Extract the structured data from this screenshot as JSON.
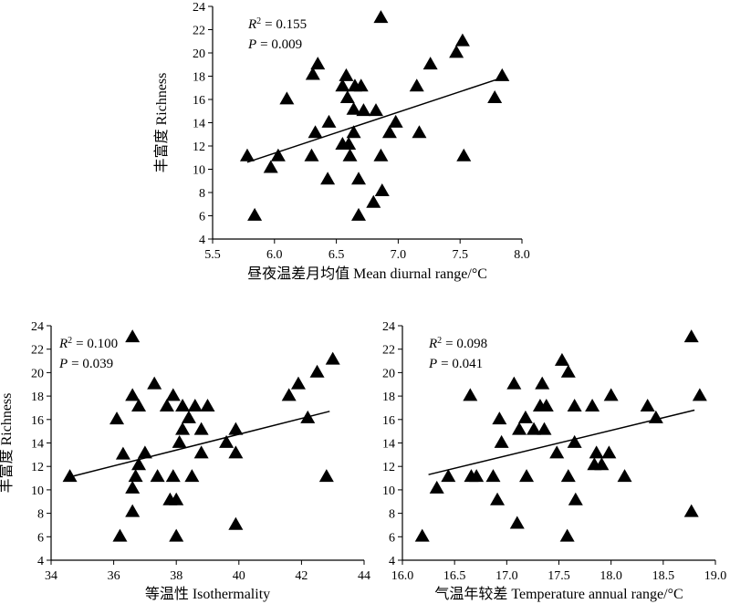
{
  "chart_data": [
    {
      "type": "scatter",
      "xlabel": "昼夜温差月均值 Mean diurnal range/°C",
      "ylabel": "丰富度 Richness",
      "xlim": [
        5.5,
        8.0
      ],
      "ylim": [
        4,
        24
      ],
      "xticks": [
        "5.5",
        "6.0",
        "6.5",
        "7.0",
        "7.5",
        "8.0"
      ],
      "yticks": [
        "4",
        "6",
        "8",
        "10",
        "12",
        "14",
        "16",
        "18",
        "20",
        "22",
        "24"
      ],
      "annotation": {
        "r2_label": "R",
        "r2_value": "= 0.155",
        "p_label": "P",
        "p_value": "= 0.009"
      },
      "marker": "triangle",
      "grid": false,
      "fit": {
        "x0": 5.78,
        "y0": 10.6,
        "x1": 7.82,
        "y1": 17.8
      },
      "points": [
        [
          5.78,
          11.1
        ],
        [
          5.84,
          6.0
        ],
        [
          5.97,
          10.1
        ],
        [
          6.03,
          11.1
        ],
        [
          6.1,
          16.0
        ],
        [
          6.3,
          11.1
        ],
        [
          6.31,
          18.1
        ],
        [
          6.33,
          13.1
        ],
        [
          6.35,
          19.0
        ],
        [
          6.43,
          9.1
        ],
        [
          6.44,
          14.0
        ],
        [
          6.55,
          12.1
        ],
        [
          6.55,
          17.1
        ],
        [
          6.58,
          18.0
        ],
        [
          6.59,
          16.1
        ],
        [
          6.6,
          12.1
        ],
        [
          6.61,
          11.1
        ],
        [
          6.64,
          15.1
        ],
        [
          6.64,
          13.1
        ],
        [
          6.65,
          17.1
        ],
        [
          6.68,
          9.1
        ],
        [
          6.68,
          6.0
        ],
        [
          6.7,
          17.1
        ],
        [
          6.72,
          15.0
        ],
        [
          6.8,
          7.1
        ],
        [
          6.82,
          15.0
        ],
        [
          6.86,
          11.1
        ],
        [
          6.87,
          8.1
        ],
        [
          6.86,
          23.0
        ],
        [
          6.93,
          13.1
        ],
        [
          6.98,
          14.0
        ],
        [
          7.15,
          17.1
        ],
        [
          7.17,
          13.1
        ],
        [
          7.26,
          19.0
        ],
        [
          7.47,
          20.0
        ],
        [
          7.52,
          21.0
        ],
        [
          7.53,
          11.1
        ],
        [
          7.78,
          16.1
        ],
        [
          7.84,
          18.0
        ]
      ]
    },
    {
      "type": "scatter",
      "xlabel": "等温性 Isothermality",
      "ylabel": "丰富度 Richness",
      "xlim": [
        34,
        44
      ],
      "ylim": [
        4,
        24
      ],
      "xticks": [
        "34",
        "36",
        "38",
        "40",
        "42",
        "44"
      ],
      "yticks": [
        "4",
        "6",
        "8",
        "10",
        "12",
        "14",
        "16",
        "18",
        "20",
        "22",
        "24"
      ],
      "annotation": {
        "r2_label": "R",
        "r2_value": "= 0.100",
        "p_label": "P",
        "p_value": "= 0.039"
      },
      "marker": "triangle",
      "grid": false,
      "fit": {
        "x0": 34.6,
        "y0": 11.1,
        "x1": 42.9,
        "y1": 16.7
      },
      "points": [
        [
          34.6,
          11.1
        ],
        [
          36.1,
          16.0
        ],
        [
          36.2,
          6.0
        ],
        [
          36.3,
          13.0
        ],
        [
          36.6,
          23.0
        ],
        [
          36.6,
          18.0
        ],
        [
          36.6,
          10.1
        ],
        [
          36.6,
          8.1
        ],
        [
          36.7,
          11.1
        ],
        [
          36.8,
          17.1
        ],
        [
          36.8,
          12.1
        ],
        [
          37.0,
          13.1
        ],
        [
          37.3,
          19.0
        ],
        [
          37.4,
          11.1
        ],
        [
          37.7,
          17.1
        ],
        [
          37.8,
          9.1
        ],
        [
          37.9,
          18.0
        ],
        [
          37.9,
          11.1
        ],
        [
          38.0,
          9.1
        ],
        [
          38.0,
          6.0
        ],
        [
          38.1,
          14.0
        ],
        [
          38.2,
          17.1
        ],
        [
          38.2,
          15.1
        ],
        [
          38.4,
          16.1
        ],
        [
          38.5,
          11.1
        ],
        [
          38.6,
          17.1
        ],
        [
          38.8,
          13.1
        ],
        [
          38.8,
          15.1
        ],
        [
          39.0,
          17.1
        ],
        [
          39.6,
          14.0
        ],
        [
          39.9,
          15.1
        ],
        [
          39.9,
          13.1
        ],
        [
          39.9,
          7.0
        ],
        [
          41.6,
          18.0
        ],
        [
          41.9,
          19.0
        ],
        [
          42.2,
          16.1
        ],
        [
          42.5,
          20.0
        ],
        [
          42.8,
          11.1
        ],
        [
          43.0,
          21.1
        ]
      ]
    },
    {
      "type": "scatter",
      "xlabel": "气温年较差 Temperature annual range/°C",
      "ylabel": "",
      "xlim": [
        16.0,
        19.0
      ],
      "ylim": [
        4,
        24
      ],
      "xticks": [
        "16.0",
        "16.5",
        "17.0",
        "17.5",
        "18.0",
        "18.5",
        "19.0"
      ],
      "yticks": [
        "4",
        "6",
        "8",
        "10",
        "12",
        "14",
        "16",
        "18",
        "20",
        "22",
        "24"
      ],
      "annotation": {
        "r2_label": "R",
        "r2_value": "= 0.098",
        "p_label": "P",
        "p_value": "= 0.041"
      },
      "marker": "triangle",
      "grid": false,
      "fit": {
        "x0": 16.25,
        "y0": 11.3,
        "x1": 18.8,
        "y1": 16.8
      },
      "points": [
        [
          16.19,
          6.0
        ],
        [
          16.33,
          10.1
        ],
        [
          16.44,
          11.1
        ],
        [
          16.65,
          18.0
        ],
        [
          16.66,
          11.1
        ],
        [
          16.71,
          11.1
        ],
        [
          16.87,
          11.1
        ],
        [
          16.91,
          9.1
        ],
        [
          16.93,
          16.0
        ],
        [
          16.95,
          14.0
        ],
        [
          17.07,
          19.0
        ],
        [
          17.1,
          7.1
        ],
        [
          17.12,
          15.1
        ],
        [
          17.18,
          16.1
        ],
        [
          17.19,
          11.1
        ],
        [
          17.26,
          15.1
        ],
        [
          17.32,
          17.1
        ],
        [
          17.34,
          19.0
        ],
        [
          17.36,
          15.1
        ],
        [
          17.38,
          17.1
        ],
        [
          17.48,
          13.1
        ],
        [
          17.53,
          21.0
        ],
        [
          17.58,
          6.0
        ],
        [
          17.59,
          20.0
        ],
        [
          17.59,
          11.1
        ],
        [
          17.65,
          17.1
        ],
        [
          17.65,
          14.0
        ],
        [
          17.66,
          9.1
        ],
        [
          17.82,
          17.1
        ],
        [
          17.84,
          12.1
        ],
        [
          17.86,
          13.1
        ],
        [
          17.91,
          12.1
        ],
        [
          17.98,
          13.1
        ],
        [
          18.0,
          18.0
        ],
        [
          18.13,
          11.1
        ],
        [
          18.35,
          17.1
        ],
        [
          18.43,
          16.1
        ],
        [
          18.77,
          23.0
        ],
        [
          18.77,
          8.1
        ],
        [
          18.85,
          18.0
        ]
      ]
    }
  ]
}
